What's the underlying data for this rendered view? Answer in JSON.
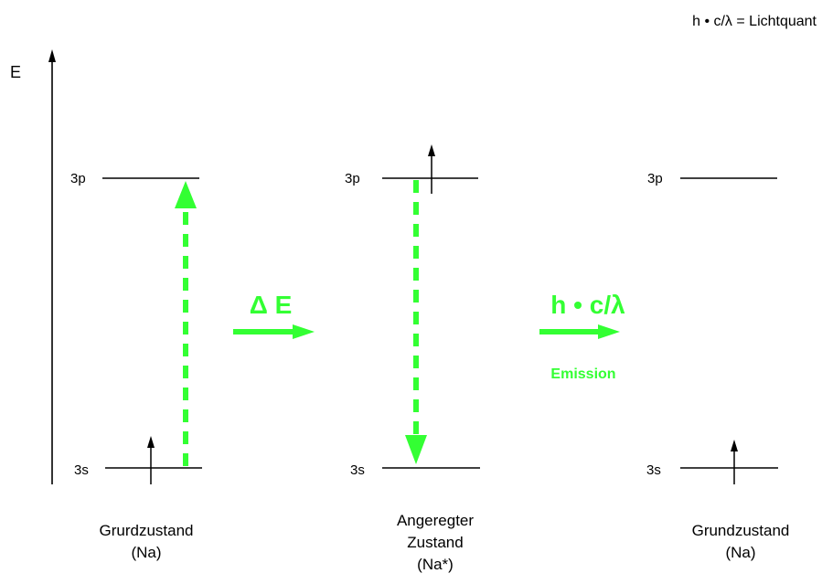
{
  "legend": "h • c/λ = Lichtquant",
  "axis": {
    "label": "E"
  },
  "levels": {
    "upper": "3p",
    "lower": "3s"
  },
  "transitions": {
    "absorption": "Δ E",
    "emission_formula": "h • c/λ",
    "emission_label": "Emission"
  },
  "states": [
    {
      "line1": "Grurdzustand",
      "line2": "(Na)"
    },
    {
      "line1": "Angeregter",
      "line2": "Zustand",
      "line3": "(Na*)"
    },
    {
      "line1": "Grundzustand",
      "line2": "(Na)"
    }
  ],
  "colors": {
    "accent": "#33ff33",
    "line": "#000000",
    "background": "#ffffff"
  }
}
